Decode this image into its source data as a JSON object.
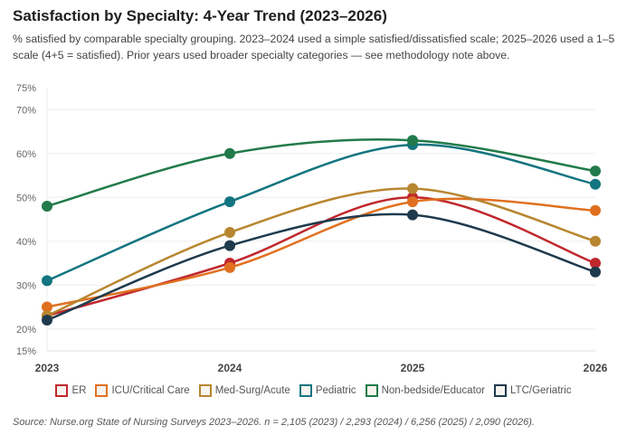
{
  "chart_data": {
    "type": "line",
    "title": "Satisfaction by Specialty: 4-Year Trend (2023–2026)",
    "subtitle": "% satisfied by comparable specialty grouping. 2023–2024 used a simple satisfied/dissatisfied scale; 2025–2026 used a 1–5 scale (4+5 = satisfied). Prior years used broader specialty categories — see methodology note above.",
    "x": [
      "2023",
      "2024",
      "2025",
      "2026"
    ],
    "ylim": [
      15,
      75
    ],
    "yticks": [
      "15%",
      "20%",
      "30%",
      "40%",
      "50%",
      "60%",
      "70%",
      "75%"
    ],
    "ytick_values": [
      15,
      20,
      30,
      40,
      50,
      60,
      70,
      75
    ],
    "grid": true,
    "legend_position": "bottom",
    "series": [
      {
        "name": "ER",
        "color": "#c0282d",
        "values": [
          23,
          35,
          50,
          35
        ]
      },
      {
        "name": "ICU/Critical Care",
        "color": "#e07020",
        "values": [
          25,
          34,
          49,
          47
        ]
      },
      {
        "name": "Med-Surg/Acute",
        "color": "#b8862f",
        "values": [
          23,
          42,
          52,
          40
        ]
      },
      {
        "name": "Pediatric",
        "color": "#137580",
        "values": [
          31,
          49,
          62,
          53
        ]
      },
      {
        "name": "Non-bedside/Educator",
        "color": "#217a4a",
        "values": [
          48,
          60,
          63,
          56
        ]
      },
      {
        "name": "LTC/Geriatric",
        "color": "#1f3a4d",
        "values": [
          22,
          39,
          46,
          33
        ]
      }
    ],
    "source": "Source: Nurse.org State of Nursing Surveys 2023–2026. n = 2,105 (2023) / 2,293 (2024) / 6,256 (2025) / 2,090 (2026)."
  }
}
